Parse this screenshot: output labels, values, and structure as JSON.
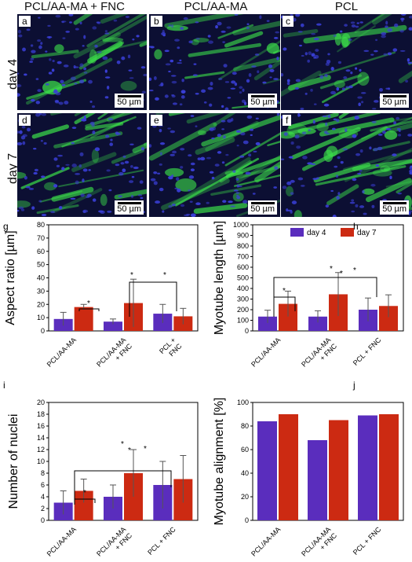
{
  "columns": [
    "PCL/AA-MA + FNC",
    "PCL/AA-MA",
    "PCL"
  ],
  "rows": [
    "day 4",
    "day 7"
  ],
  "micrographs": [
    {
      "letter": "a",
      "scale": "50 µm"
    },
    {
      "letter": "b",
      "scale": "50 µm"
    },
    {
      "letter": "c",
      "scale": "50 µm"
    },
    {
      "letter": "d",
      "scale": "50 µm"
    },
    {
      "letter": "e",
      "scale": "50 µm"
    },
    {
      "letter": "f",
      "scale": "50 µm"
    }
  ],
  "colors": {
    "day4": "#5a2dbd",
    "day7": "#cc2a12",
    "nuclei": "#3a3fd8",
    "actin": "#3ce04a",
    "background": "#0c0f33"
  },
  "legend": [
    "day 4",
    "day 7"
  ],
  "chart_data": [
    {
      "id": "g",
      "type": "bar",
      "ylabel": "Aspect ratio [µm]",
      "ylim": [
        0,
        80
      ],
      "yticks": [
        0,
        10,
        20,
        30,
        40,
        50,
        60,
        70,
        80
      ],
      "categories": [
        "PCL/AA-MA",
        "PCL/AA-MA\n+ FNC",
        "PCL +\nFNC"
      ],
      "series": [
        {
          "name": "day 4",
          "values": [
            9,
            7,
            13
          ],
          "errors": [
            5,
            2,
            7
          ]
        },
        {
          "name": "day 7",
          "values": [
            18,
            21,
            11
          ],
          "errors": [
            2,
            18,
            6
          ]
        }
      ],
      "significance": [
        "*",
        "*",
        "*"
      ]
    },
    {
      "id": "h",
      "type": "bar",
      "ylabel": "Myotube length [µm]",
      "ylim": [
        0,
        1000
      ],
      "yticks": [
        0,
        100,
        200,
        300,
        400,
        500,
        600,
        700,
        800,
        900,
        1000
      ],
      "categories": [
        "PCL/AA-MA",
        "PCL/AA-MA\n+ FNC",
        "PCL + FNC"
      ],
      "series": [
        {
          "name": "day 4",
          "values": [
            135,
            135,
            200
          ],
          "errors": [
            60,
            55,
            110
          ]
        },
        {
          "name": "day 7",
          "values": [
            255,
            345,
            235
          ],
          "errors": [
            120,
            205,
            105
          ]
        }
      ],
      "significance": [
        "*",
        "*",
        "*",
        "*"
      ]
    },
    {
      "id": "i",
      "type": "bar",
      "ylabel": "Number of nuclei",
      "ylim": [
        0,
        20
      ],
      "yticks": [
        0,
        2,
        4,
        6,
        8,
        10,
        12,
        14,
        16,
        18,
        20
      ],
      "categories": [
        "PCL/AA-MA",
        "PCL/AA-MA\n+ FNC",
        "PCL + FNC"
      ],
      "series": [
        {
          "name": "day 4",
          "values": [
            3,
            4,
            6
          ],
          "errors": [
            2,
            2,
            4
          ]
        },
        {
          "name": "day 7",
          "values": [
            5,
            8,
            7
          ],
          "errors": [
            2,
            4,
            4
          ]
        }
      ],
      "significance": [
        "*",
        "*",
        "*",
        "*"
      ]
    },
    {
      "id": "j",
      "type": "bar",
      "ylabel": "Myotube alignment [%]",
      "ylim": [
        0,
        100
      ],
      "yticks": [
        0,
        20,
        40,
        60,
        80,
        100
      ],
      "categories": [
        "PCL/AA-MA",
        "PCL/AA-MA\n+ FNC",
        "PCL + FNC"
      ],
      "series": [
        {
          "name": "day 4",
          "values": [
            84,
            68,
            89
          ]
        },
        {
          "name": "day 7",
          "values": [
            90,
            85,
            90
          ]
        }
      ],
      "significance": []
    }
  ]
}
